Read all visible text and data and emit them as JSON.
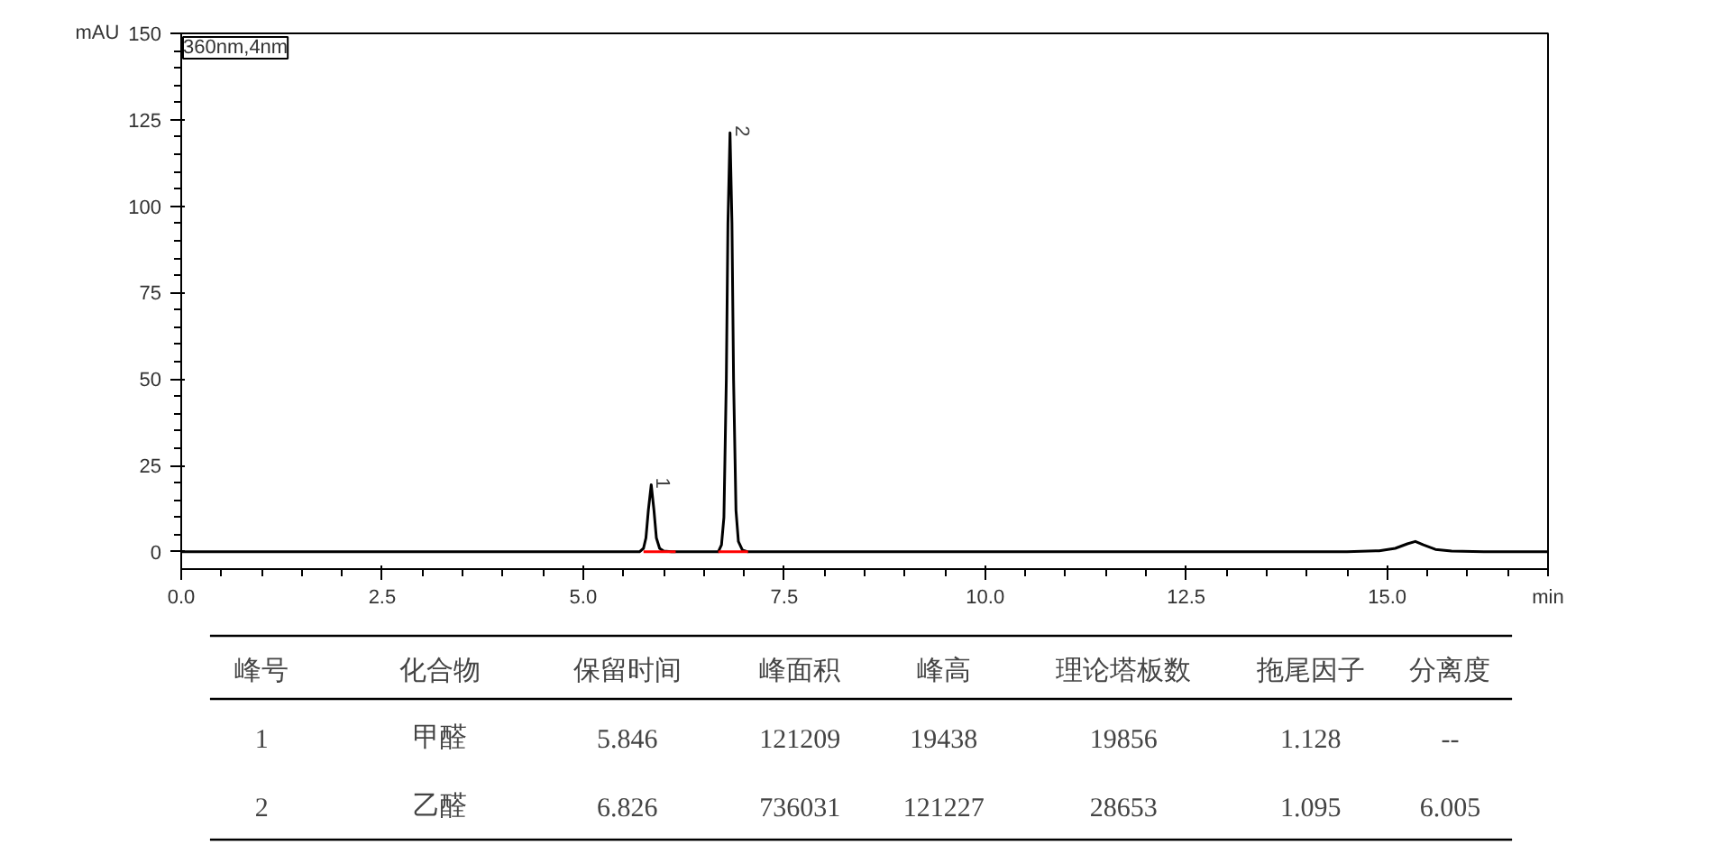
{
  "chart_data": [
    {
      "type": "line",
      "ylabel": "mAU",
      "xlabel": "min",
      "xlim": [
        0,
        17
      ],
      "ylim": [
        -5,
        150
      ],
      "xticks": [
        {
          "value": 0,
          "label": "0.0"
        },
        {
          "value": 2.5,
          "label": "2.5"
        },
        {
          "value": 5,
          "label": "5.0"
        },
        {
          "value": 7.5,
          "label": "7.5"
        },
        {
          "value": 10,
          "label": "10.0"
        },
        {
          "value": 12.5,
          "label": "12.5"
        },
        {
          "value": 15,
          "label": "15.0"
        }
      ],
      "yticks": [
        0,
        25,
        50,
        75,
        100,
        125,
        150
      ],
      "line_style": "solid",
      "marker": "none",
      "series": [
        {
          "color": "#000000",
          "x": [
            0,
            2.5,
            3.75,
            5.7,
            5.75,
            5.78,
            5.81,
            5.846,
            5.88,
            5.91,
            5.95,
            6.0,
            6.1,
            6.68,
            6.72,
            6.75,
            6.78,
            6.8,
            6.826,
            6.85,
            6.87,
            6.9,
            6.93,
            6.98,
            7.05,
            12.7,
            14.5,
            14.9,
            15.1,
            15.25,
            15.35,
            15.45,
            15.6,
            15.8,
            16.2,
            17
          ],
          "values": [
            0,
            0,
            0,
            0,
            1,
            4,
            12,
            19.4,
            12,
            4,
            1,
            0.2,
            0,
            0,
            2,
            10,
            50,
            95,
            121.2,
            95,
            50,
            12,
            3,
            0.5,
            0,
            0,
            0,
            0.3,
            1,
            2.3,
            3,
            2,
            0.7,
            0.2,
            0,
            0
          ]
        },
        {
          "color": "#ff0000",
          "x": [
            5.75,
            6.15,
            6.4,
            6.68,
            7.05
          ],
          "values": [
            0,
            0,
            null,
            0,
            0
          ]
        }
      ],
      "annotations": [
        "360nm,4nm",
        {
          "text": "1",
          "x": 5.846,
          "y": 19.4
        },
        {
          "text": "2",
          "x": 6.826,
          "y": 121.2
        }
      ]
    },
    {
      "type": "other",
      "categories": [
        "峰号",
        "化合物",
        "保留时间",
        "峰面积",
        "峰高",
        "理论塔板数",
        "拖尾因子",
        "分离度"
      ],
      "annotations": [
        "1",
        "甲醛",
        "5.846",
        "121209",
        "19438",
        "19856",
        "1.128",
        "--",
        "2",
        "乙醛",
        "6.826",
        "736031",
        "121227",
        "28653",
        "1.095",
        "6.005"
      ]
    }
  ]
}
